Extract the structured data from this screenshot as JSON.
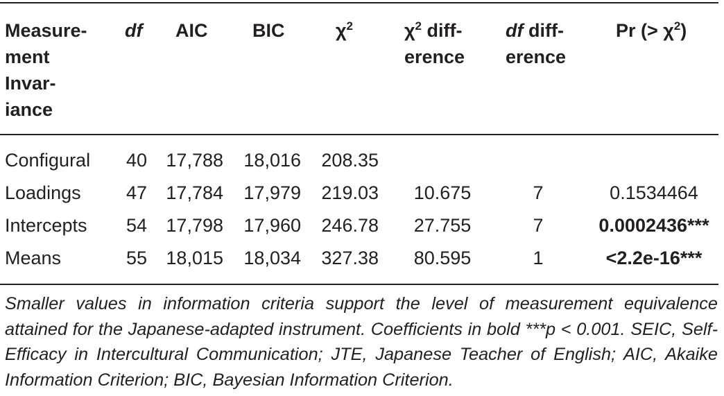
{
  "table": {
    "headers": {
      "col_measurement": [
        "Measure-",
        "ment",
        "Invar-",
        "iance"
      ],
      "col_df": "df",
      "col_aic": "AIC",
      "col_bic": "BIC",
      "col_chi2": "χ",
      "col_chi2_sup": "2",
      "col_chi2diff_a": "χ",
      "col_chi2diff_sup": "2",
      "col_chi2diff_b": " diff-",
      "col_chi2diff_c": "erence",
      "col_dfdiff_a": "df",
      "col_dfdiff_b": " diff-",
      "col_dfdiff_c": "erence",
      "col_pr_a": "Pr (> χ",
      "col_pr_sup": "2",
      "col_pr_b": ")"
    },
    "rows": [
      {
        "label": "Configural",
        "df": "40",
        "aic": "17,788",
        "bic": "18,016",
        "chi2": "208.35",
        "chi2_diff": "",
        "df_diff": "",
        "pr": ""
      },
      {
        "label": "Loadings",
        "df": "47",
        "aic": "17,784",
        "bic": "17,979",
        "chi2": "219.03",
        "chi2_diff": "10.675",
        "df_diff": "7",
        "pr": "0.1534464"
      },
      {
        "label": "Intercepts",
        "df": "54",
        "aic": "17,798",
        "bic": "17,960",
        "chi2": "246.78",
        "chi2_diff": "27.755",
        "df_diff": "7",
        "pr": "0.0002436***"
      },
      {
        "label": "Means",
        "df": "55",
        "aic": "18,015",
        "bic": "18,034",
        "chi2": "327.38",
        "chi2_diff": "80.595",
        "df_diff": "1",
        "pr": "<2.2e-16***"
      }
    ]
  },
  "footnote": "Smaller values in information criteria support the level of measurement equivalence attained for the Japanese-adapted instrument. Coefficients in bold ***p < 0.001. SEIC, Self-Efficacy in Intercultural Communication; JTE, Japanese Teacher of English; AIC, Akaike Information Criterion; BIC, Bayesian Information Criterion."
}
